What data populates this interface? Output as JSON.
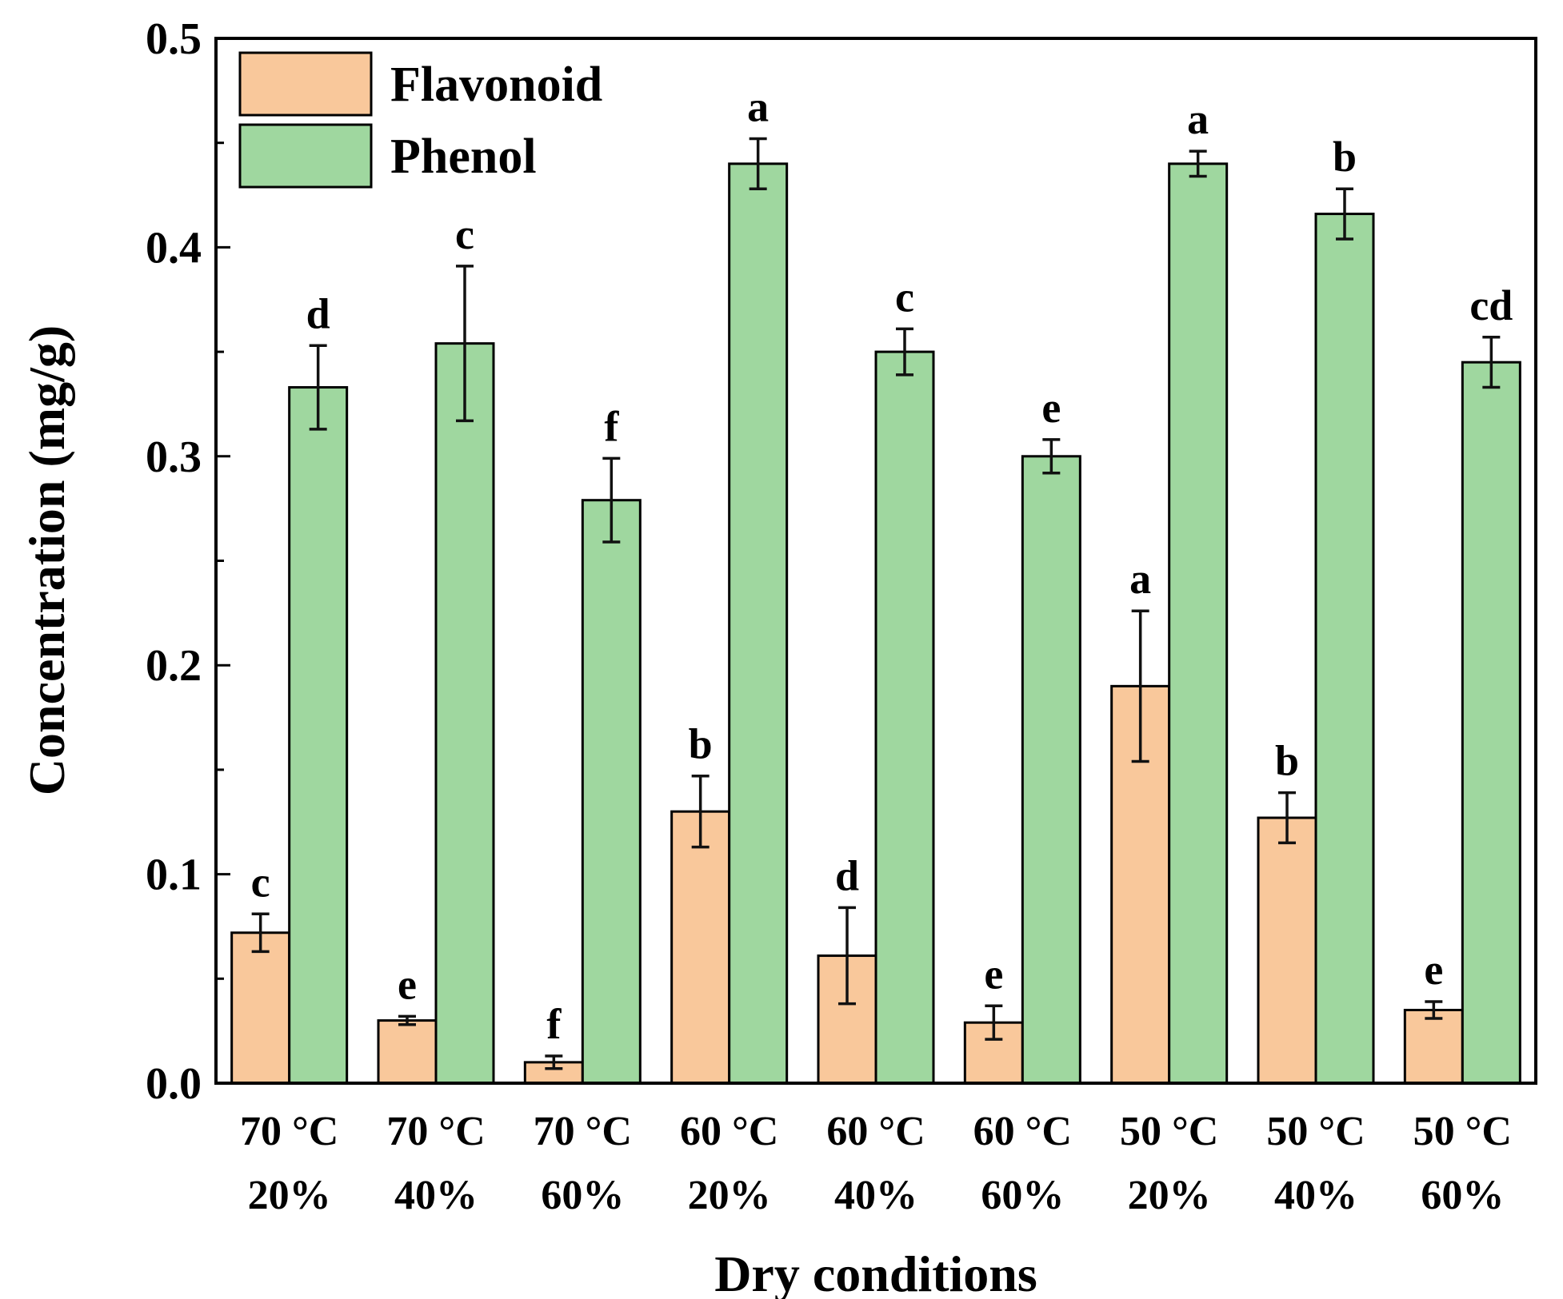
{
  "chart_data": {
    "type": "bar",
    "title": "",
    "xlabel": "Dry conditions",
    "ylabel": "Concentration (mg/g)",
    "ylim": [
      0,
      0.5
    ],
    "yticks": [
      "0.0",
      "0.1",
      "0.2",
      "0.3",
      "0.4",
      "0.5"
    ],
    "legend_position": "top-left",
    "categories": [
      {
        "temp": "70 °C",
        "humidity": "20%"
      },
      {
        "temp": "70 °C",
        "humidity": "40%"
      },
      {
        "temp": "70 °C",
        "humidity": "60%"
      },
      {
        "temp": "60 °C",
        "humidity": "20%"
      },
      {
        "temp": "60 °C",
        "humidity": "40%"
      },
      {
        "temp": "60 °C",
        "humidity": "60%"
      },
      {
        "temp": "50 °C",
        "humidity": "20%"
      },
      {
        "temp": "50 °C",
        "humidity": "40%"
      },
      {
        "temp": "50 °C",
        "humidity": "60%"
      }
    ],
    "series": [
      {
        "name": "Flavonoid",
        "color": "#F9C89B",
        "values": [
          0.072,
          0.03,
          0.01,
          0.13,
          0.061,
          0.029,
          0.19,
          0.127,
          0.035
        ],
        "errors": [
          0.009,
          0.002,
          0.003,
          0.017,
          0.023,
          0.008,
          0.036,
          0.012,
          0.004
        ],
        "labels": [
          "c",
          "e",
          "f",
          "b",
          "d",
          "e",
          "a",
          "b",
          "e"
        ]
      },
      {
        "name": "Phenol",
        "color": "#9FD79F",
        "values": [
          0.333,
          0.354,
          0.279,
          0.44,
          0.35,
          0.3,
          0.44,
          0.416,
          0.345
        ],
        "errors": [
          0.02,
          0.037,
          0.02,
          0.012,
          0.011,
          0.008,
          0.006,
          0.012,
          0.012
        ],
        "labels": [
          "d",
          "c",
          "f",
          "a",
          "c",
          "e",
          "a",
          "b",
          "cd"
        ]
      }
    ]
  }
}
